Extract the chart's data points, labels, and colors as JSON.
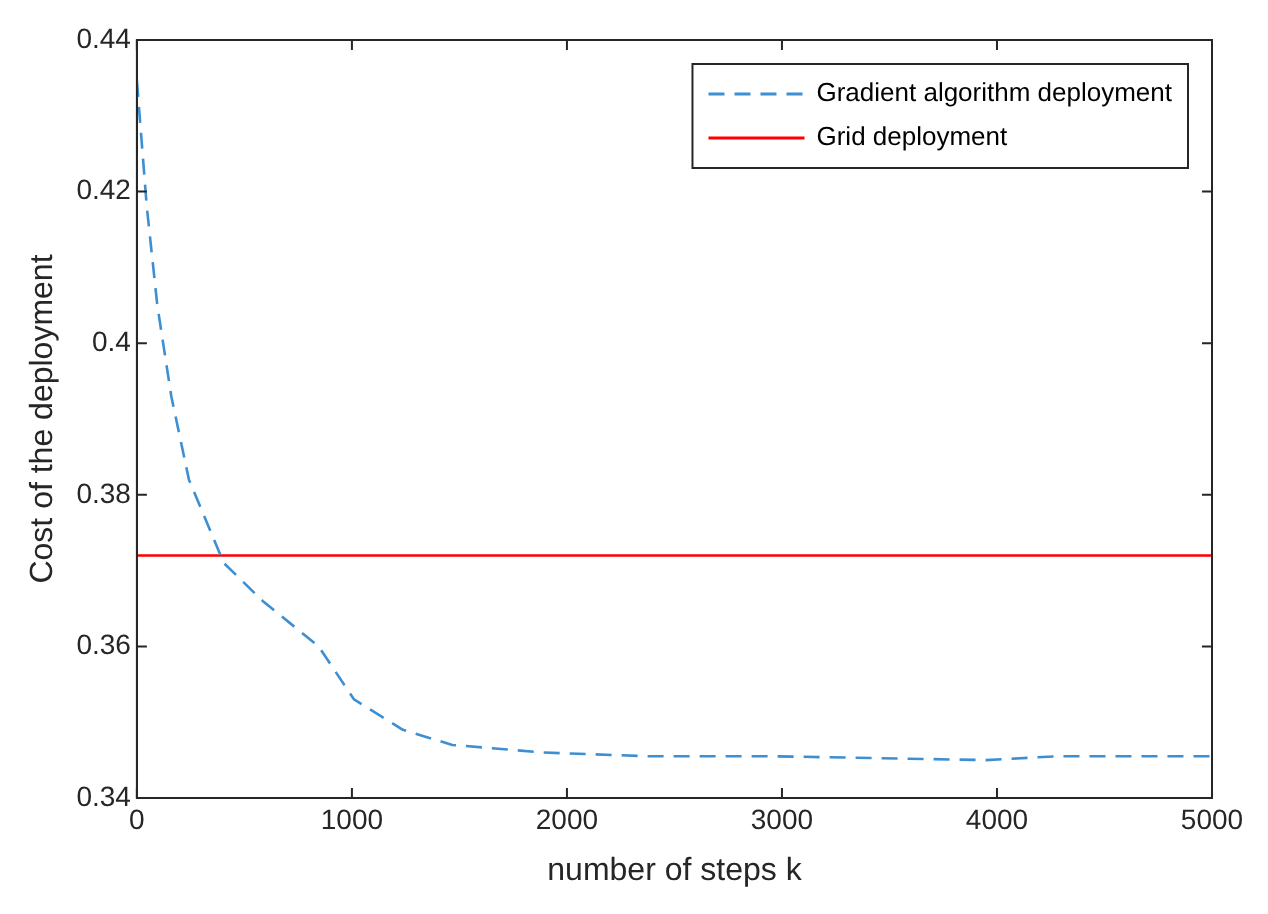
{
  "chart_data": {
    "type": "line",
    "xlabel": "number of steps k",
    "ylabel": "Cost of the deployment",
    "xlim": [
      0,
      5000
    ],
    "xticks": [
      0,
      1000,
      2000,
      3000,
      4000,
      5000
    ],
    "ylim": [
      0.34,
      0.44
    ],
    "yticks": [
      0.34,
      0.36,
      0.38,
      0.4,
      0.42,
      0.44
    ],
    "grid": false,
    "legend": "top right",
    "marker": "none",
    "series": [
      {
        "name": "Gradient algorithm deployment",
        "color": "#3d8fd1",
        "line_style": "dashed",
        "x": [
          0,
          46,
          95,
          160,
          242,
          404,
          585,
          845,
          1010,
          1237,
          1467,
          1892,
          2382,
          2970,
          3950,
          4275,
          5000
        ],
        "values": [
          0.4346,
          0.418,
          0.405,
          0.393,
          0.382,
          0.371,
          0.366,
          0.36,
          0.353,
          0.349,
          0.347,
          0.346,
          0.3455,
          0.3455,
          0.345,
          0.3455,
          0.3455
        ]
      },
      {
        "name": "Grid deployment",
        "color": "#ff0000",
        "line_style": "solid",
        "x": [
          0,
          5000
        ],
        "values": [
          0.372,
          0.372
        ]
      }
    ]
  }
}
